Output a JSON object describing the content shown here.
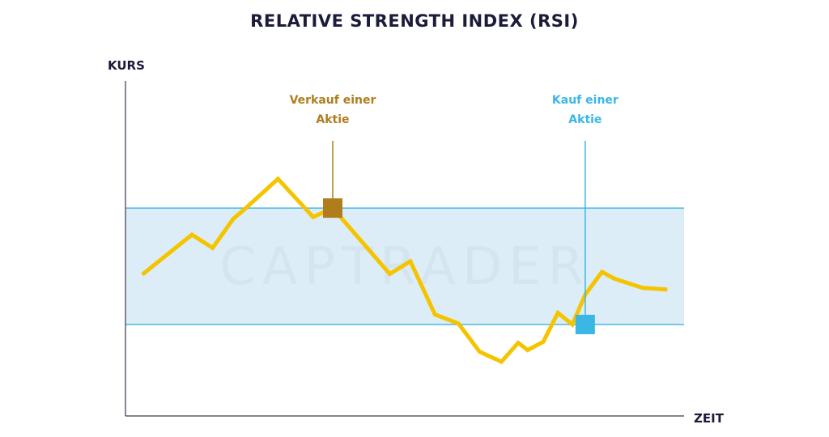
{
  "chart_data": {
    "type": "line",
    "title": "RELATIVE STRENGTH INDEX (RSI)",
    "ylabel": "KURS",
    "xlabel": "ZEIT",
    "watermark": "CAPTRADER",
    "xlim": [
      0,
      100
    ],
    "ylim": [
      0,
      100
    ],
    "band": {
      "lower": 27.5,
      "upper": 62.5,
      "fill": "#dcedf7",
      "line": "#49b8e6"
    },
    "series": [
      {
        "color": "#f5c400",
        "x": [
          3,
          11.9,
          15.6,
          19.3,
          21.2,
          27.3,
          33.6,
          37.1,
          47.3,
          51.0,
          55.4,
          59.6,
          63.4,
          67.3,
          70.3,
          72.0,
          74.8,
          77.4,
          80.0,
          82.3,
          85.3,
          87.5,
          92.6,
          97
        ],
        "y": [
          42.5,
          54.5,
          50.5,
          59.3,
          62.0,
          71.3,
          59.8,
          62.5,
          42.7,
          46.5,
          30.5,
          27.8,
          19.3,
          16.3,
          22.0,
          19.8,
          22.3,
          31.0,
          27.5,
          36.5,
          43.3,
          41.3,
          38.5,
          38.0
        ]
      }
    ],
    "annotations": [
      {
        "label": [
          "Verkauf einer",
          "Aktie"
        ],
        "x": 37.1,
        "y": 62.5,
        "color": "#b07d1c"
      },
      {
        "label": [
          "Kauf einer",
          "Aktie"
        ],
        "x": 82.3,
        "y": 27.5,
        "color": "#3ab7e4"
      }
    ]
  }
}
